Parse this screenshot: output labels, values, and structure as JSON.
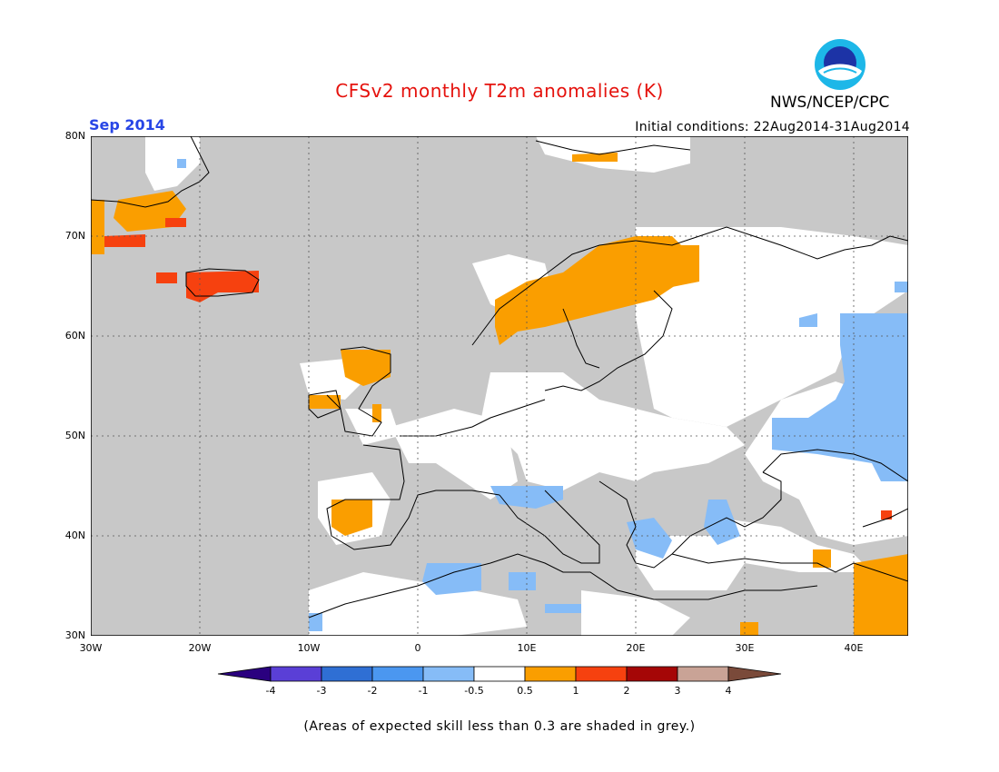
{
  "title": "CFSv2 monthly T2m anomalies (K)",
  "agency": "NWS/NCEP/CPC",
  "logo_text": "NOAA",
  "month_label": "Sep 2014",
  "initial_conditions": "Initial conditions: 22Aug2014-31Aug2014",
  "lat_labels": [
    "80N",
    "70N",
    "60N",
    "50N",
    "40N",
    "30N"
  ],
  "lon_labels": [
    "30W",
    "20W",
    "10W",
    "0",
    "10E",
    "20E",
    "30E",
    "40E"
  ],
  "colorbar": {
    "labels": [
      "-4",
      "-3",
      "-2",
      "-1",
      "-0.5",
      "0.5",
      "1",
      "2",
      "3",
      "4"
    ],
    "colors": [
      "#2a007f",
      "#5a3fd6",
      "#2f6fd4",
      "#4b97f0",
      "#86bcf7",
      "#ffffff",
      "#fa9e00",
      "#f6410f",
      "#a50606",
      "#c9a396",
      "#7a4a3a"
    ]
  },
  "note": "(Areas of expected skill less than 0.3 are shaded in grey.)",
  "map_colors": {
    "grey": "#c8c8c8",
    "white": "#ffffff",
    "orange": "#fa9e00",
    "red": "#f6410f",
    "lightblue": "#86bcf7",
    "land_outline": "#000000"
  }
}
